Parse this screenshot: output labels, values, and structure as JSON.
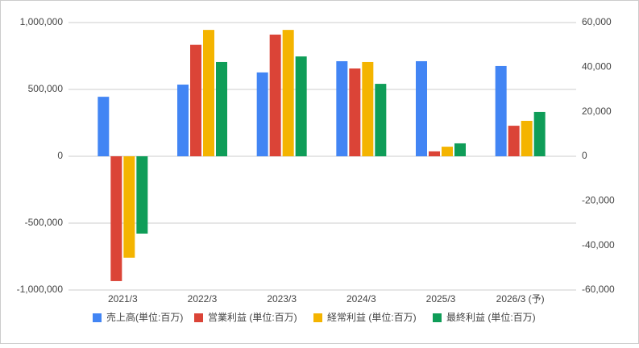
{
  "chart_data": {
    "type": "bar",
    "categories": [
      "2021/3",
      "2022/3",
      "2023/3",
      "2024/3",
      "2025/3",
      "2026/3 (予)"
    ],
    "series": [
      {
        "name": "売上高(単位:百万)",
        "color": "#4285f4",
        "values": [
          445000,
          536000,
          627000,
          711000,
          711000,
          675000
        ]
      },
      {
        "name": "営業利益 (単位:百万)",
        "color": "#db4437",
        "values": [
          -56000,
          50000,
          54600,
          39400,
          2200,
          13700
        ],
        "axis": "y2"
      },
      {
        "name": "経常利益 (単位:百万)",
        "color": "#f4b400",
        "values": [
          -45500,
          56700,
          56700,
          42300,
          4300,
          15900
        ],
        "axis": "y2"
      },
      {
        "name": "最終利益 (単位:百万)",
        "color": "#0f9d58",
        "values": [
          -34700,
          42300,
          44800,
          32500,
          5800,
          19900
        ],
        "axis": "y2"
      }
    ],
    "ylim": [
      -1000000,
      1000000
    ],
    "yticks": [
      {
        "value": -1000000,
        "label": "-1,000,000"
      },
      {
        "value": -500000,
        "label": "-500,000"
      },
      0,
      {
        "value": 500000,
        "label": "500,000"
      },
      {
        "value": 1000000,
        "label": "1,000,000"
      }
    ],
    "y2lim": [
      -60000,
      60000
    ],
    "y2ticks": [
      {
        "value": -60000,
        "label": "-60,000"
      },
      {
        "value": -40000,
        "label": "-40,000"
      },
      {
        "value": -20000,
        "label": "-20,000"
      },
      0,
      {
        "value": 20000,
        "label": "20,000"
      },
      {
        "value": 40000,
        "label": "40,000"
      },
      {
        "value": 60000,
        "label": "60,000"
      }
    ],
    "grid": true,
    "legend": "bottom"
  }
}
